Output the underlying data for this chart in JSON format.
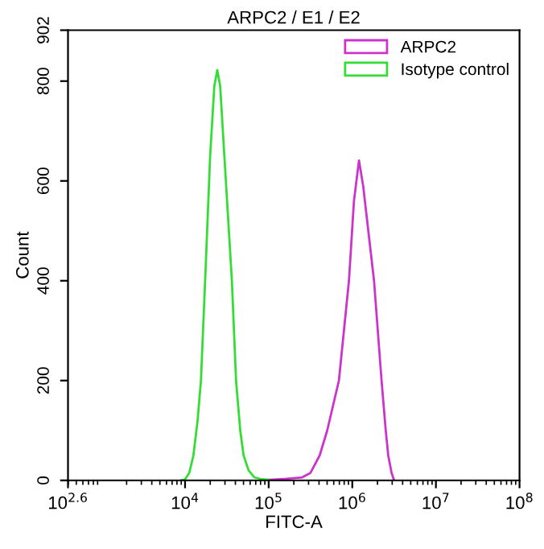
{
  "chart_data": {
    "type": "line",
    "title": "ARPC2 / E1 / E2",
    "xlabel": "FITC-A",
    "ylabel": "Count",
    "log": "x",
    "xlim": [
      398.1,
      100000000
    ],
    "xticks": [
      {
        "value": 398.1,
        "label": "10$^{2.6}$"
      },
      {
        "value": 10000,
        "label": "10$^{4}$"
      },
      {
        "value": 100000,
        "label": "10$^{5}$"
      },
      {
        "value": 1000000,
        "label": "10$^{6}$"
      },
      {
        "value": 10000000,
        "label": "10$^{7}$"
      },
      {
        "value": 100000000,
        "label": "10$^{8}$"
      }
    ],
    "ylim": [
      0,
      902
    ],
    "yticks": [
      0,
      200,
      400,
      600,
      800,
      902
    ],
    "grid": false,
    "legend": "top right",
    "marker": "none",
    "line_style": "solid",
    "series": [
      {
        "name": "ARPC2",
        "color": "#cc33cc",
        "x": [
          79433,
          100000,
          158489,
          251189,
          316228,
          407380,
          501187,
          691831,
          912011,
          1047129,
          1202264,
          1348963,
          1819701,
          2238721,
          2511886,
          2691535,
          2951209,
          3162278
        ],
        "values": [
          0,
          1,
          3,
          6,
          15,
          50,
          100,
          200,
          400,
          560,
          641,
          590,
          400,
          200,
          100,
          50,
          15,
          0
        ]
      },
      {
        "name": "Isotype control",
        "color": "#33dd33",
        "x": [
          8913,
          10000,
          11220,
          12589,
          14125,
          15488,
          17378,
          19953,
          22387,
          24266,
          26303,
          29512,
          36308,
          40738,
          45709,
          50119,
          57544,
          67608,
          83176,
          100000
        ],
        "values": [
          0,
          2,
          15,
          50,
          120,
          200,
          400,
          650,
          790,
          822,
          790,
          650,
          400,
          200,
          100,
          50,
          20,
          6,
          2,
          1
        ]
      }
    ]
  }
}
